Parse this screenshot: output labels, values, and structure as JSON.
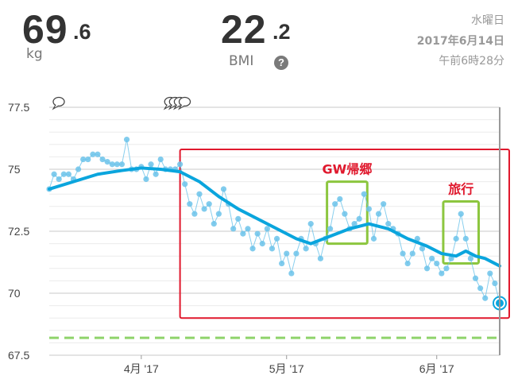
{
  "header": {
    "weight_int": "69",
    "weight_dec": ".6",
    "weight_unit": "kg",
    "bmi_int": "22",
    "bmi_dec": ".2",
    "bmi_label": "BMI",
    "help_icon": "?",
    "day_of_week": "水曜日",
    "date": "2017年6月14日",
    "time": "午前6時28分"
  },
  "colors": {
    "measurement": "#6cc3ea",
    "trend": "#0aa5dd",
    "target": "#8fd36b",
    "highlight_box": "#e0182d",
    "event_box": "#8cc63f"
  },
  "chart_data": {
    "type": "line",
    "x_start": "2017-03-13",
    "x_end": "2017-06-14",
    "ylim": [
      67.5,
      77.5
    ],
    "yticks": [
      "77.5",
      "75",
      "72.5",
      "70",
      "67.5"
    ],
    "xticks": [
      {
        "date": "2017-04-01",
        "label": "4月 '17"
      },
      {
        "date": "2017-05-01",
        "label": "5月 '17"
      },
      {
        "date": "2017-06-01",
        "label": "6月 '17"
      }
    ],
    "target_weight": 68.2,
    "grid": true,
    "series": [
      {
        "kind": "measurements",
        "points": [
          [
            "2017-03-13",
            74.2
          ],
          [
            "2017-03-14",
            74.8
          ],
          [
            "2017-03-15",
            74.6
          ],
          [
            "2017-03-16",
            74.8
          ],
          [
            "2017-03-17",
            74.8
          ],
          [
            "2017-03-18",
            74.6
          ],
          [
            "2017-03-19",
            75.0
          ],
          [
            "2017-03-20",
            75.4
          ],
          [
            "2017-03-21",
            75.4
          ],
          [
            "2017-03-22",
            75.6
          ],
          [
            "2017-03-23",
            75.6
          ],
          [
            "2017-03-24",
            75.4
          ],
          [
            "2017-03-25",
            75.3
          ],
          [
            "2017-03-26",
            75.2
          ],
          [
            "2017-03-27",
            75.2
          ],
          [
            "2017-03-28",
            75.2
          ],
          [
            "2017-03-29",
            76.2
          ],
          [
            "2017-03-30",
            75.0
          ],
          [
            "2017-03-31",
            75.0
          ],
          [
            "2017-04-01",
            75.1
          ],
          [
            "2017-04-02",
            74.6
          ],
          [
            "2017-04-03",
            75.2
          ],
          [
            "2017-04-04",
            74.8
          ],
          [
            "2017-04-05",
            75.4
          ],
          [
            "2017-04-06",
            75.0
          ],
          [
            "2017-04-07",
            75.0
          ],
          [
            "2017-04-08",
            75.0
          ],
          [
            "2017-04-09",
            75.2
          ],
          [
            "2017-04-10",
            74.4
          ],
          [
            "2017-04-11",
            73.6
          ],
          [
            "2017-04-12",
            73.2
          ],
          [
            "2017-04-13",
            74.0
          ],
          [
            "2017-04-14",
            73.4
          ],
          [
            "2017-04-15",
            73.6
          ],
          [
            "2017-04-16",
            72.8
          ],
          [
            "2017-04-17",
            73.2
          ],
          [
            "2017-04-18",
            74.2
          ],
          [
            "2017-04-19",
            73.6
          ],
          [
            "2017-04-20",
            72.6
          ],
          [
            "2017-04-21",
            73.0
          ],
          [
            "2017-04-22",
            72.4
          ],
          [
            "2017-04-23",
            72.6
          ],
          [
            "2017-04-24",
            71.8
          ],
          [
            "2017-04-25",
            72.4
          ],
          [
            "2017-04-26",
            72.0
          ],
          [
            "2017-04-27",
            72.6
          ],
          [
            "2017-04-28",
            71.8
          ],
          [
            "2017-04-29",
            72.2
          ],
          [
            "2017-04-30",
            71.2
          ],
          [
            "2017-05-01",
            71.6
          ],
          [
            "2017-05-02",
            70.8
          ],
          [
            "2017-05-03",
            71.6
          ],
          [
            "2017-05-04",
            72.2
          ],
          [
            "2017-05-05",
            71.8
          ],
          [
            "2017-05-06",
            72.8
          ],
          [
            "2017-05-07",
            72.0
          ],
          [
            "2017-05-08",
            71.4
          ],
          [
            "2017-05-09",
            72.2
          ],
          [
            "2017-05-10",
            72.6
          ],
          [
            "2017-05-11",
            73.6
          ],
          [
            "2017-05-12",
            73.8
          ],
          [
            "2017-05-13",
            73.2
          ],
          [
            "2017-05-14",
            72.6
          ],
          [
            "2017-05-15",
            72.8
          ],
          [
            "2017-05-16",
            73.0
          ],
          [
            "2017-05-17",
            74.0
          ],
          [
            "2017-05-18",
            73.4
          ],
          [
            "2017-05-19",
            72.2
          ],
          [
            "2017-05-20",
            73.2
          ],
          [
            "2017-05-21",
            73.6
          ],
          [
            "2017-05-22",
            72.8
          ],
          [
            "2017-05-23",
            72.6
          ],
          [
            "2017-05-24",
            72.4
          ],
          [
            "2017-05-25",
            71.6
          ],
          [
            "2017-05-26",
            71.2
          ],
          [
            "2017-05-27",
            71.6
          ],
          [
            "2017-05-28",
            72.2
          ],
          [
            "2017-05-29",
            71.8
          ],
          [
            "2017-05-30",
            71.0
          ],
          [
            "2017-05-31",
            71.4
          ],
          [
            "2017-06-01",
            71.2
          ],
          [
            "2017-06-02",
            70.8
          ],
          [
            "2017-06-03",
            71.0
          ],
          [
            "2017-06-04",
            71.4
          ],
          [
            "2017-06-05",
            72.2
          ],
          [
            "2017-06-06",
            73.2
          ],
          [
            "2017-06-07",
            72.2
          ],
          [
            "2017-06-08",
            71.4
          ],
          [
            "2017-06-09",
            70.6
          ],
          [
            "2017-06-10",
            70.2
          ],
          [
            "2017-06-11",
            69.8
          ],
          [
            "2017-06-12",
            70.8
          ],
          [
            "2017-06-13",
            70.4
          ],
          [
            "2017-06-14",
            69.6
          ]
        ]
      },
      {
        "kind": "trend",
        "points": [
          [
            "2017-03-13",
            74.2
          ],
          [
            "2017-03-18",
            74.5
          ],
          [
            "2017-03-23",
            74.8
          ],
          [
            "2017-03-28",
            74.95
          ],
          [
            "2017-04-01",
            75.05
          ],
          [
            "2017-04-05",
            75.0
          ],
          [
            "2017-04-09",
            74.9
          ],
          [
            "2017-04-13",
            74.5
          ],
          [
            "2017-04-17",
            73.9
          ],
          [
            "2017-04-21",
            73.4
          ],
          [
            "2017-04-25",
            73.0
          ],
          [
            "2017-04-29",
            72.6
          ],
          [
            "2017-05-03",
            72.2
          ],
          [
            "2017-05-06",
            72.0
          ],
          [
            "2017-05-10",
            72.3
          ],
          [
            "2017-05-14",
            72.6
          ],
          [
            "2017-05-18",
            72.8
          ],
          [
            "2017-05-22",
            72.6
          ],
          [
            "2017-05-26",
            72.2
          ],
          [
            "2017-05-30",
            71.9
          ],
          [
            "2017-06-02",
            71.6
          ],
          [
            "2017-06-05",
            71.5
          ],
          [
            "2017-06-07",
            71.7
          ],
          [
            "2017-06-09",
            71.5
          ],
          [
            "2017-06-11",
            71.4
          ],
          [
            "2017-06-14",
            71.1
          ]
        ]
      }
    ],
    "annotations": [
      {
        "label": "GW帰郷",
        "from": "2017-05-10",
        "to": "2017-05-17",
        "y_range": [
          72.0,
          74.5
        ]
      },
      {
        "label": "旅行",
        "from": "2017-06-03",
        "to": "2017-06-09",
        "y_range": [
          71.2,
          73.7
        ]
      }
    ],
    "highlight_range": {
      "from": "2017-04-09",
      "to": "2017-06-14",
      "y_range": [
        69.0,
        75.8
      ]
    },
    "note_markers": [
      "2017-03-13",
      "2017-04-05",
      "2017-04-06",
      "2017-04-07",
      "2017-04-08"
    ]
  }
}
